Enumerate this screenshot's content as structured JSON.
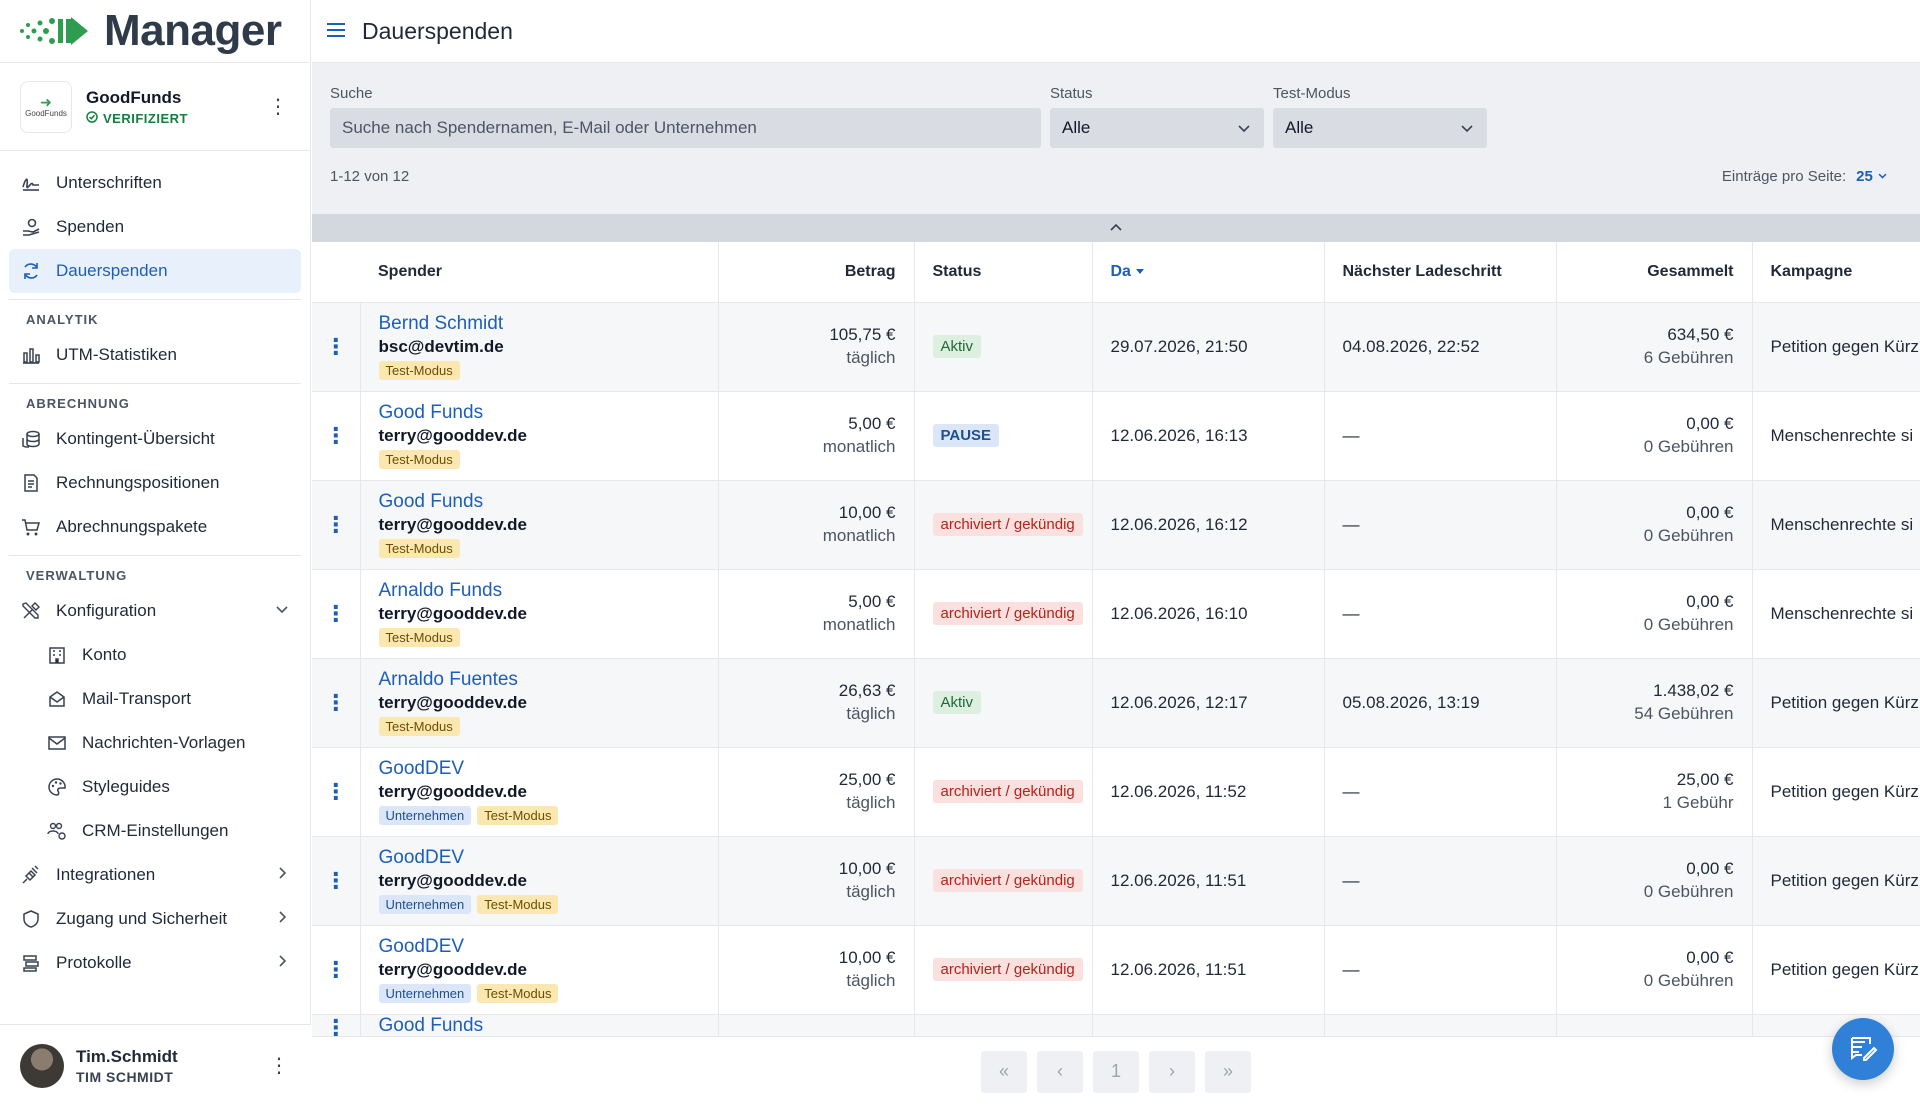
{
  "app": {
    "title": "Manager"
  },
  "org": {
    "name": "GoodFunds",
    "status": "VERIFIZIERT",
    "logo_text": "GoodFunds"
  },
  "nav": {
    "main": [
      {
        "label": "Unterschriften",
        "icon": "signature-icon"
      },
      {
        "label": "Spenden",
        "icon": "hand-coin-icon"
      },
      {
        "label": "Dauerspenden",
        "icon": "refresh-icon"
      }
    ],
    "analytics_title": "ANALYTIK",
    "analytics": [
      {
        "label": "UTM-Statistiken",
        "icon": "bar-chart-icon"
      }
    ],
    "billing_title": "ABRECHNUNG",
    "billing": [
      {
        "label": "Kontingent-Übersicht",
        "icon": "coins-icon"
      },
      {
        "label": "Rechnungspositionen",
        "icon": "receipt-icon"
      },
      {
        "label": "Abrechnungspakete",
        "icon": "cart-icon"
      }
    ],
    "admin_title": "VERWALTUNG",
    "config": {
      "label": "Konfiguration",
      "icon": "tools-icon"
    },
    "config_items": [
      {
        "label": "Konto",
        "icon": "building-icon"
      },
      {
        "label": "Mail-Transport",
        "icon": "mailbox-icon"
      },
      {
        "label": "Nachrichten-Vorlagen",
        "icon": "envelope-icon"
      },
      {
        "label": "Styleguides",
        "icon": "palette-icon"
      },
      {
        "label": "CRM-Einstellungen",
        "icon": "users-gear-icon"
      }
    ],
    "admin": [
      {
        "label": "Integrationen",
        "icon": "plug-icon"
      },
      {
        "label": "Zugang und Sicherheit",
        "icon": "shield-icon"
      },
      {
        "label": "Protokolle",
        "icon": "log-icon"
      }
    ]
  },
  "user": {
    "name": "Tim.Schmidt",
    "sub": "TIM SCHMIDT"
  },
  "page": {
    "title": "Dauerspenden"
  },
  "filters": {
    "search_label": "Suche",
    "search_placeholder": "Suche nach Spendernamen, E-Mail oder Unternehmen",
    "status_label": "Status",
    "status_value": "Alle",
    "test_label": "Test-Modus",
    "test_value": "Alle"
  },
  "list": {
    "count": "1-12 von 12",
    "per_page_label": "Einträge pro Seite:",
    "per_page_value": "25"
  },
  "table": {
    "headers": {
      "donor": "Spender",
      "amount": "Betrag",
      "status": "Status",
      "date": "Da",
      "next": "Nächster Ladeschritt",
      "total": "Gesammelt",
      "campaign": "Kampagne"
    },
    "rows": [
      {
        "name": "Bernd Schmidt",
        "email": "bsc@devtim.de",
        "tags": [
          "Test-Modus"
        ],
        "amount": "105,75 €",
        "interval": "täglich",
        "status": "Aktiv",
        "status_type": "green",
        "date": "29.07.2026, 21:50",
        "next": "04.08.2026, 22:52",
        "total": "634,50 €",
        "fees": "6 Gebühren",
        "campaign": "Petition gegen Kürz"
      },
      {
        "name": "Good Funds",
        "email": "terry@gooddev.de",
        "tags": [
          "Test-Modus"
        ],
        "amount": "5,00 €",
        "interval": "monatlich",
        "status": "PAUSE",
        "status_type": "blue",
        "date": "12.06.2026, 16:13",
        "next": "—",
        "total": "0,00 €",
        "fees": "0 Gebühren",
        "campaign": "Menschenrechte si"
      },
      {
        "name": "Good Funds",
        "email": "terry@gooddev.de",
        "tags": [
          "Test-Modus"
        ],
        "amount": "10,00 €",
        "interval": "monatlich",
        "status": "archiviert / gekündig",
        "status_type": "red",
        "date": "12.06.2026, 16:12",
        "next": "—",
        "total": "0,00 €",
        "fees": "0 Gebühren",
        "campaign": "Menschenrechte si"
      },
      {
        "name": "Arnaldo Funds",
        "email": "terry@gooddev.de",
        "tags": [
          "Test-Modus"
        ],
        "amount": "5,00 €",
        "interval": "monatlich",
        "status": "archiviert / gekündig",
        "status_type": "red",
        "date": "12.06.2026, 16:10",
        "next": "—",
        "total": "0,00 €",
        "fees": "0 Gebühren",
        "campaign": "Menschenrechte si"
      },
      {
        "name": "Arnaldo Fuentes",
        "email": "terry@gooddev.de",
        "tags": [
          "Test-Modus"
        ],
        "amount": "26,63 €",
        "interval": "täglich",
        "status": "Aktiv",
        "status_type": "green",
        "date": "12.06.2026, 12:17",
        "next": "05.08.2026, 13:19",
        "total": "1.438,02 €",
        "fees": "54 Gebühren",
        "campaign": "Petition gegen Kürz"
      },
      {
        "name": "GoodDEV",
        "email": "terry@gooddev.de",
        "tags": [
          "Unternehmen",
          "Test-Modus"
        ],
        "amount": "25,00 €",
        "interval": "täglich",
        "status": "archiviert / gekündig",
        "status_type": "red",
        "date": "12.06.2026, 11:52",
        "next": "—",
        "total": "25,00 €",
        "fees": "1 Gebühr",
        "campaign": "Petition gegen Kürz"
      },
      {
        "name": "GoodDEV",
        "email": "terry@gooddev.de",
        "tags": [
          "Unternehmen",
          "Test-Modus"
        ],
        "amount": "10,00 €",
        "interval": "täglich",
        "status": "archiviert / gekündig",
        "status_type": "red",
        "date": "12.06.2026, 11:51",
        "next": "—",
        "total": "0,00 €",
        "fees": "0 Gebühren",
        "campaign": "Petition gegen Kürz"
      },
      {
        "name": "GoodDEV",
        "email": "terry@gooddev.de",
        "tags": [
          "Unternehmen",
          "Test-Modus"
        ],
        "amount": "10,00 €",
        "interval": "täglich",
        "status": "archiviert / gekündig",
        "status_type": "red",
        "date": "12.06.2026, 11:51",
        "next": "—",
        "total": "0,00 €",
        "fees": "0 Gebühren",
        "campaign": "Petition gegen Kürz"
      },
      {
        "name": "Good Funds",
        "email": "",
        "tags": [],
        "amount": "",
        "interval": "",
        "status": "",
        "status_type": "",
        "date": "",
        "next": "",
        "total": "",
        "fees": "",
        "campaign": ""
      }
    ]
  },
  "pagination": {
    "first": "«",
    "prev": "‹",
    "page": "1",
    "next": "›",
    "last": "»"
  },
  "colors": {
    "accent": "#1d5fb8",
    "brand_green": "#2e9d4f",
    "fab": "#2f80d6"
  }
}
